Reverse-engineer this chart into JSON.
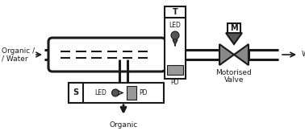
{
  "line_color": "#1a1a1a",
  "gray_valve": "#888888",
  "gray_dark": "#555555",
  "gray_med": "#999999",
  "figsize": [
    3.78,
    1.63
  ],
  "dpi": 100,
  "xlim": [
    0,
    378
  ],
  "ylim": [
    0,
    163
  ]
}
